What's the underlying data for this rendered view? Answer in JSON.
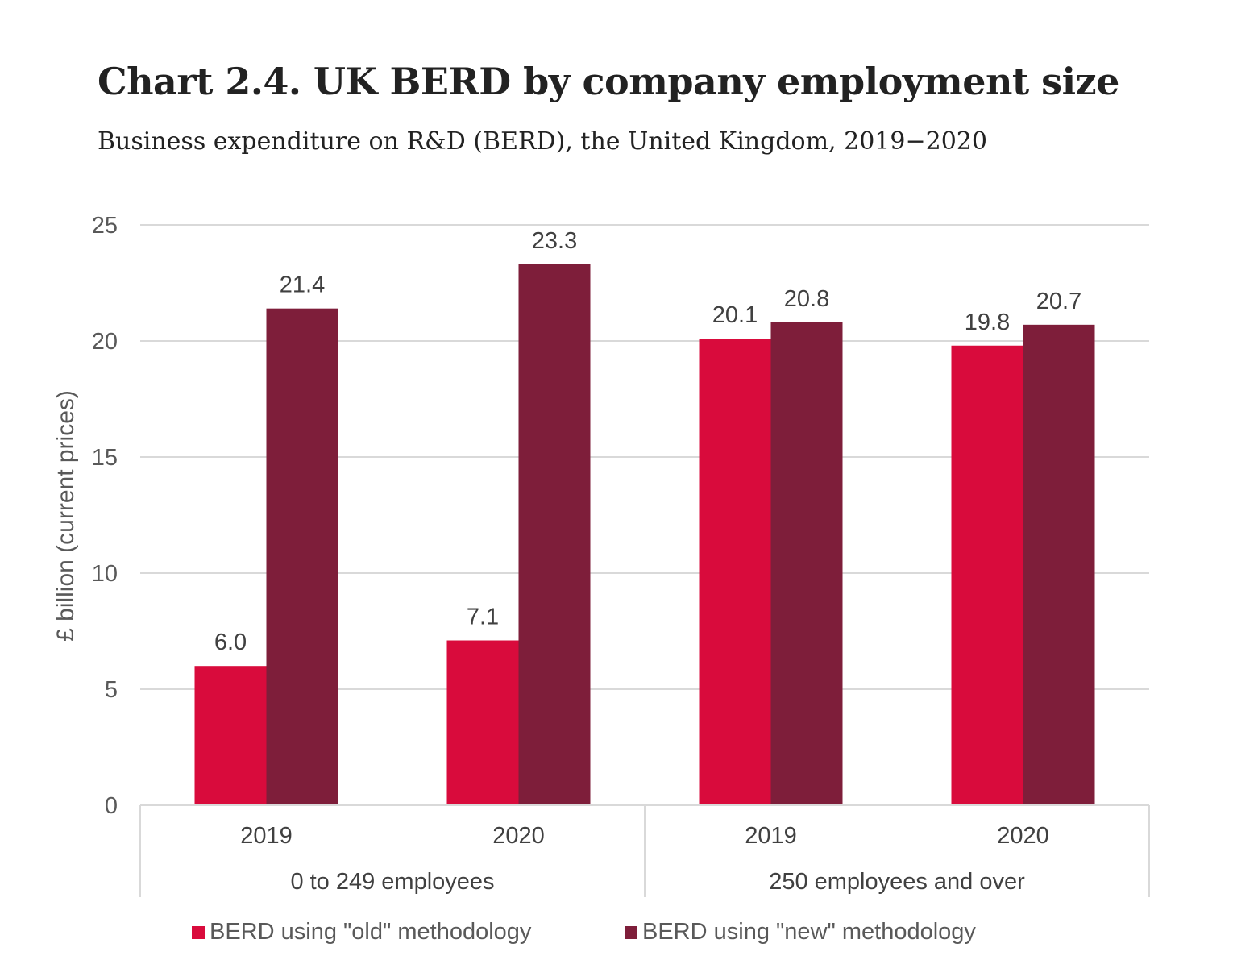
{
  "title": "Chart 2.4. UK BERD by company employment size",
  "subtitle": "Business expenditure on R&D (BERD), the United Kingdom, 2019−2020",
  "chart_data": {
    "type": "bar",
    "ylabel": "£ billion (current prices)",
    "ylim": [
      0,
      25
    ],
    "yticks": [
      0,
      5,
      10,
      15,
      20,
      25
    ],
    "grid": true,
    "legend_position": "bottom",
    "groups": [
      {
        "label": "0 to 249 employees",
        "categories": [
          "2019",
          "2020"
        ]
      },
      {
        "label": "250 employees and over",
        "categories": [
          "2019",
          "2020"
        ]
      }
    ],
    "series": [
      {
        "name": "BERD using \"old\" methodology",
        "color": "#d90b3c",
        "values": [
          6.0,
          7.1,
          20.1,
          19.8
        ]
      },
      {
        "name": "BERD using \"new\" methodology",
        "color": "#7e1e3a",
        "values": [
          21.4,
          23.3,
          20.8,
          20.7
        ]
      }
    ]
  }
}
